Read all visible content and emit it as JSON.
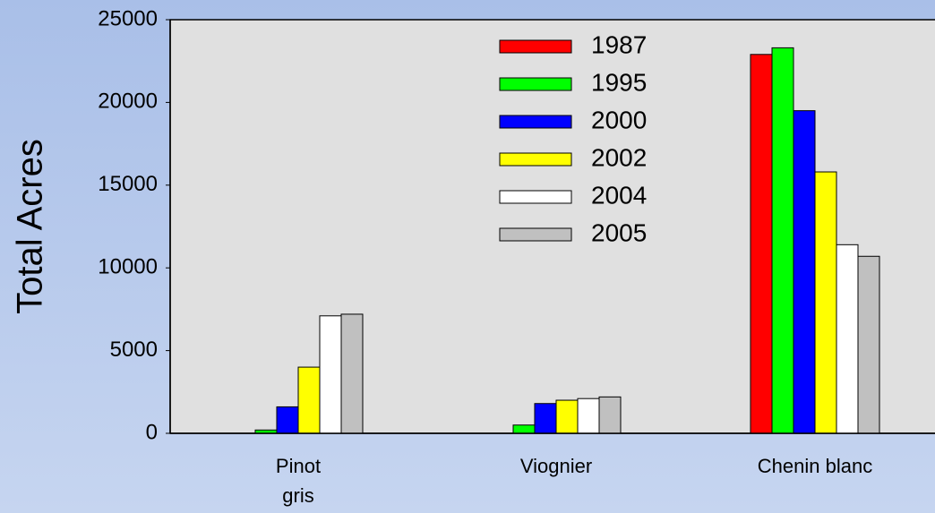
{
  "chart_data": {
    "type": "bar",
    "y_label": "Total Acres",
    "categories": [
      "Pinot\ngris",
      "Viognier",
      "Chenin blanc"
    ],
    "series": [
      {
        "name": "1987",
        "color": "#ff0000",
        "values": [
          0,
          0,
          22900
        ]
      },
      {
        "name": "1995",
        "color": "#00ff00",
        "values": [
          200,
          500,
          23300
        ]
      },
      {
        "name": "2000",
        "color": "#0000ff",
        "values": [
          1600,
          1800,
          19500
        ]
      },
      {
        "name": "2002",
        "color": "#ffff00",
        "values": [
          4000,
          2000,
          15800
        ]
      },
      {
        "name": "2004",
        "color": "#ffffff",
        "values": [
          7100,
          2100,
          11400
        ]
      },
      {
        "name": "2005",
        "color": "#c0c0c0",
        "values": [
          7200,
          2200,
          10700
        ]
      }
    ],
    "ylim": [
      0,
      25000
    ],
    "yticks": [
      0,
      5000,
      10000,
      15000,
      20000,
      25000
    ],
    "grid": false
  }
}
